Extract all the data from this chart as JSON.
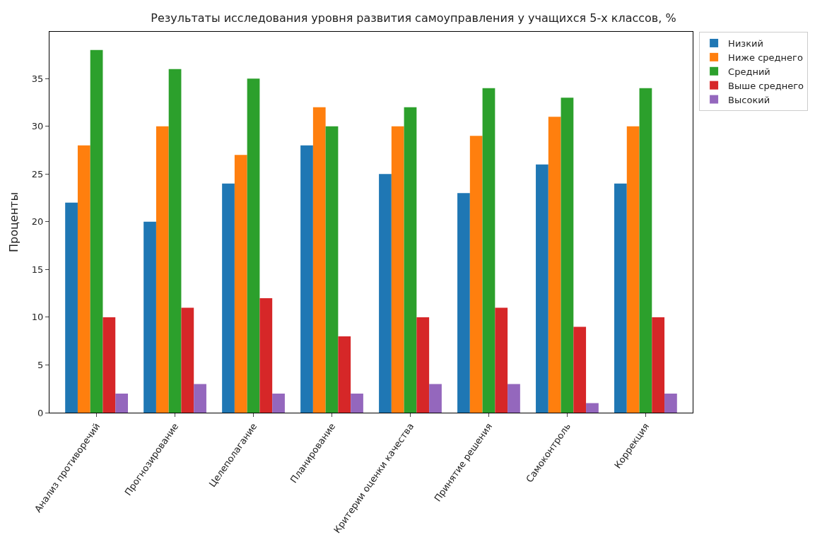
{
  "chart_data": {
    "type": "bar",
    "title": "Результаты исследования уровня развития самоуправления у учащихся 5-х классов, %",
    "ylabel": "Проценты",
    "categories": [
      "Анализ противоречий",
      "Прогнозирование",
      "Целеполагание",
      "Планирование",
      "Критерии оценки качества",
      "Принятие решения",
      "Самоконтроль",
      "Коррекция"
    ],
    "series": [
      {
        "name": "Низкий",
        "color": "#1f77b4",
        "values": [
          22,
          20,
          24,
          28,
          25,
          23,
          26,
          24
        ]
      },
      {
        "name": "Ниже среднего",
        "color": "#ff7f0e",
        "values": [
          28,
          30,
          27,
          32,
          30,
          29,
          31,
          30
        ]
      },
      {
        "name": "Средний",
        "color": "#2ca02c",
        "values": [
          38,
          36,
          35,
          30,
          32,
          34,
          33,
          34
        ]
      },
      {
        "name": "Выше среднего",
        "color": "#d62728",
        "values": [
          10,
          11,
          12,
          8,
          10,
          11,
          9,
          10
        ]
      },
      {
        "name": "Высокий",
        "color": "#9467bd",
        "values": [
          2,
          3,
          2,
          2,
          3,
          3,
          1,
          2
        ]
      }
    ],
    "ylim": [
      0,
      39.9
    ],
    "yticks": [
      0,
      5,
      10,
      15,
      20,
      25,
      30,
      35
    ],
    "legend": "top right"
  }
}
